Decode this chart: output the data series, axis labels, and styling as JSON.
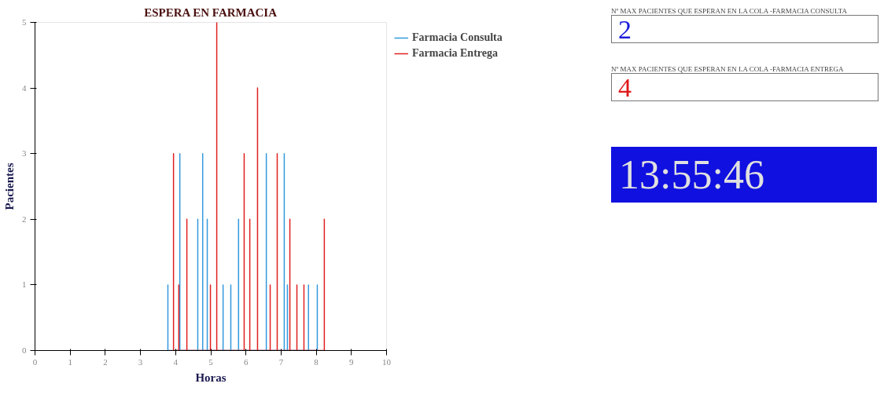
{
  "chart_data": [
    {
      "type": "line",
      "title": "ESPERA EN FARMACIA",
      "xlabel": "Horas",
      "ylabel": "Pacientes",
      "xlim": [
        0,
        10
      ],
      "ylim": [
        0,
        5
      ],
      "xticks": [
        0,
        1,
        2,
        3,
        4,
        5,
        6,
        7,
        8,
        9,
        10
      ],
      "yticks": [
        0,
        1,
        2,
        3,
        4,
        5
      ],
      "grid": false,
      "legend": "right",
      "marker": "none",
      "line_style": "solid",
      "series": [
        {
          "name": "Farmacia Consulta",
          "color": "#3399dd",
          "x": [
            3.78,
            3.78,
            3.78,
            4.12,
            4.12,
            4.12,
            4.63,
            4.63,
            4.63,
            4.77,
            4.77,
            4.77,
            4.9,
            4.9,
            4.9,
            5.35,
            5.35,
            5.35,
            5.57,
            5.57,
            5.57,
            5.79,
            5.79,
            5.79,
            6.58,
            6.58,
            6.58,
            7.09,
            7.09,
            7.09,
            7.18,
            7.18,
            7.18,
            7.78,
            7.78,
            7.78,
            8.03,
            8.03,
            8.03
          ],
          "values": [
            0,
            1,
            0,
            0,
            3,
            0,
            0,
            2,
            0,
            0,
            3,
            0,
            0,
            2,
            0,
            0,
            1,
            0,
            0,
            1,
            0,
            0,
            2,
            0,
            0,
            3,
            0,
            0,
            3,
            0,
            0,
            1,
            0,
            0,
            1,
            0,
            0,
            1,
            0
          ]
        },
        {
          "name": "Farmacia Entrega",
          "color": "#e02020",
          "x": [
            3.94,
            3.94,
            3.94,
            4.09,
            4.09,
            4.09,
            4.32,
            4.32,
            4.32,
            4.99,
            4.99,
            4.99,
            5.17,
            5.17,
            5.17,
            5.95,
            5.95,
            5.95,
            6.11,
            6.11,
            6.11,
            6.33,
            6.33,
            6.33,
            6.69,
            6.69,
            6.69,
            6.89,
            6.89,
            6.89,
            7.25,
            7.25,
            7.25,
            7.45,
            7.45,
            7.45,
            7.65,
            7.65,
            7.65,
            8.23,
            8.23,
            8.23
          ],
          "values": [
            0,
            3,
            0,
            0,
            1,
            0,
            0,
            2,
            0,
            0,
            1,
            0,
            0,
            5,
            0,
            0,
            3,
            0,
            0,
            2,
            0,
            0,
            4,
            0,
            0,
            1,
            0,
            0,
            3,
            0,
            0,
            2,
            0,
            0,
            1,
            0,
            0,
            1,
            0,
            0,
            2,
            0
          ]
        }
      ]
    },
    {
      "type": "other",
      "annotations": [
        "Nº MAX PACIENTES QUE ESPERAN EN LA COLA -FARMACIA CONSULTA",
        "2",
        "Nº MAX PACIENTES QUE ESPERAN EN LA COLA -FARMACIA ENTREGA",
        "4",
        "13:55:46"
      ]
    }
  ]
}
